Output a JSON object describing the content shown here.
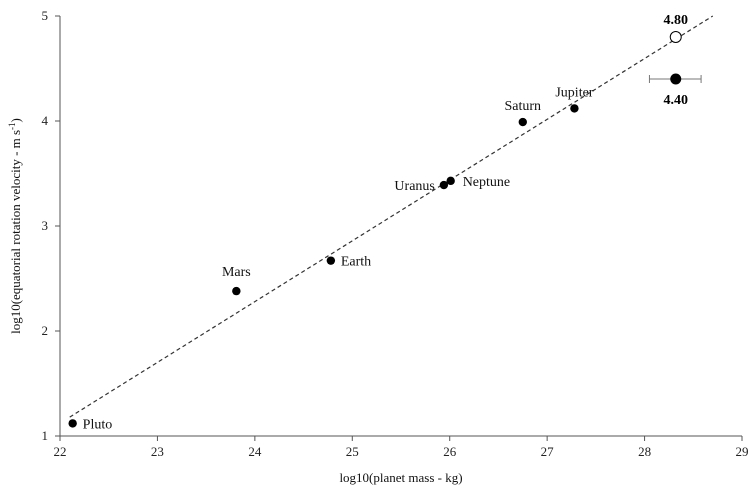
{
  "chart_data": {
    "type": "scatter",
    "xlabel": "log10(planet mass - kg)",
    "ylabel": "log10(equatorial rotation velocity - m s",
    "ylabel_sup": "-1",
    "ylabel_end": ")",
    "xlim": [
      22,
      29
    ],
    "ylim": [
      1,
      5
    ],
    "xticks": [
      "22",
      "23",
      "24",
      "25",
      "26",
      "27",
      "28",
      "29"
    ],
    "yticks": [
      "1",
      "2",
      "3",
      "4",
      "5"
    ],
    "grid": false,
    "series": [
      {
        "points": [
          {
            "label": "Pluto",
            "x": 22.13,
            "y": 1.12
          },
          {
            "label": "Mars",
            "x": 23.81,
            "y": 2.38
          },
          {
            "label": "Earth",
            "x": 24.78,
            "y": 2.67
          },
          {
            "label": "Uranus",
            "x": 25.94,
            "y": 3.39
          },
          {
            "label": "Neptune",
            "x": 26.01,
            "y": 3.43
          },
          {
            "label": "Saturn",
            "x": 26.75,
            "y": 3.99
          },
          {
            "label": "Jupiter",
            "x": 27.28,
            "y": 4.12
          }
        ]
      }
    ],
    "highlighted": [
      {
        "value_label": "4.40",
        "x": 28.32,
        "y": 4.4,
        "marker": "filled",
        "x_error": [
          28.05,
          28.58
        ]
      },
      {
        "value_label": "4.80",
        "x": 28.32,
        "y": 4.8,
        "marker": "open"
      }
    ],
    "trendline": {
      "style": "dashed",
      "x": [
        22.1,
        28.7
      ],
      "y": [
        1.18,
        5.0
      ]
    }
  }
}
